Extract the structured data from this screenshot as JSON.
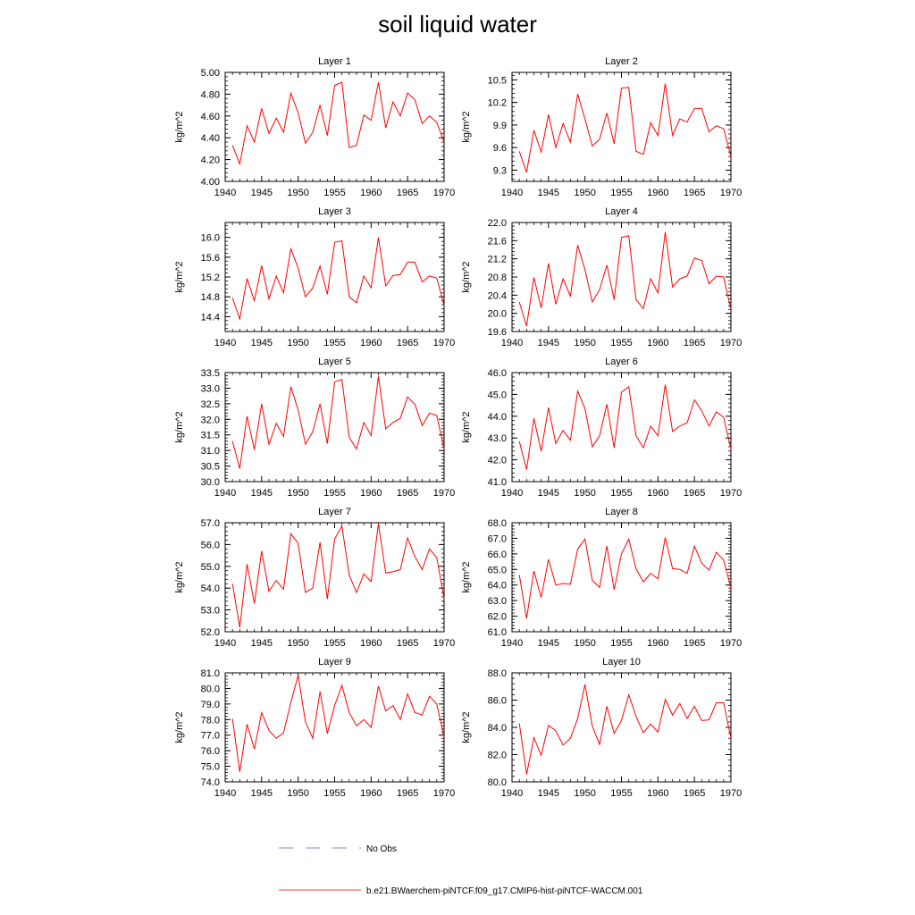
{
  "title": "soil liquid water",
  "legend": [
    {
      "label": "No Obs",
      "color": "#5b5bd6",
      "dash": "dashed"
    },
    {
      "label": "b.e21.BWaerchem-piNTCF.f09_g17.CMIP6-hist-piNTCF-WACCM.001",
      "color": "#ff0000",
      "dash": "solid"
    }
  ],
  "chart_data": [
    {
      "type": "line",
      "title": "Layer 1",
      "ylabel": "kg/m^2",
      "x": [
        1941,
        1942,
        1943,
        1944,
        1945,
        1946,
        1947,
        1948,
        1949,
        1950,
        1951,
        1952,
        1953,
        1954,
        1955,
        1956,
        1957,
        1958,
        1959,
        1960,
        1961,
        1962,
        1963,
        1964,
        1965,
        1966,
        1967,
        1968,
        1969,
        1970
      ],
      "xlim": [
        1940,
        1970
      ],
      "xticks": [
        "1940",
        "1945",
        "1950",
        "1955",
        "1960",
        "1965",
        "1970"
      ],
      "ylim": [
        4.0,
        5.0
      ],
      "yticks": [
        "4.00",
        "4.20",
        "4.40",
        "4.60",
        "4.80",
        "5.00"
      ],
      "series": [
        {
          "values": [
            4.33,
            4.16,
            4.51,
            4.36,
            4.67,
            4.44,
            4.58,
            4.45,
            4.81,
            4.63,
            4.35,
            4.45,
            4.7,
            4.42,
            4.88,
            4.91,
            4.31,
            4.33,
            4.61,
            4.56,
            4.91,
            4.49,
            4.73,
            4.6,
            4.81,
            4.75,
            4.53,
            4.6,
            4.54,
            4.36
          ],
          "color": "#ff0000"
        }
      ]
    },
    {
      "type": "line",
      "title": "Layer 2",
      "ylabel": "kg/m^2",
      "x": [
        1941,
        1942,
        1943,
        1944,
        1945,
        1946,
        1947,
        1948,
        1949,
        1950,
        1951,
        1952,
        1953,
        1954,
        1955,
        1956,
        1957,
        1958,
        1959,
        1960,
        1961,
        1962,
        1963,
        1964,
        1965,
        1966,
        1967,
        1968,
        1969,
        1970
      ],
      "xlim": [
        1940,
        1970
      ],
      "xticks": [
        "1940",
        "1945",
        "1950",
        "1955",
        "1960",
        "1965",
        "1970"
      ],
      "ylim": [
        9.15,
        10.6
      ],
      "yticks": [
        "9.3",
        "9.6",
        "9.9",
        "10.2",
        "10.5"
      ],
      "series": [
        {
          "values": [
            9.55,
            9.27,
            9.83,
            9.54,
            10.04,
            9.6,
            9.92,
            9.67,
            10.31,
            9.98,
            9.62,
            9.71,
            10.06,
            9.65,
            10.39,
            10.4,
            9.55,
            9.51,
            9.93,
            9.76,
            10.45,
            9.76,
            9.98,
            9.94,
            10.12,
            10.12,
            9.81,
            9.89,
            9.85,
            9.48
          ],
          "color": "#ff0000"
        }
      ]
    },
    {
      "type": "line",
      "title": "Layer 3",
      "ylabel": "kg/m^2",
      "x": [
        1941,
        1942,
        1943,
        1944,
        1945,
        1946,
        1947,
        1948,
        1949,
        1950,
        1951,
        1952,
        1953,
        1954,
        1955,
        1956,
        1957,
        1958,
        1959,
        1960,
        1961,
        1962,
        1963,
        1964,
        1965,
        1966,
        1967,
        1968,
        1969,
        1970
      ],
      "xlim": [
        1940,
        1970
      ],
      "xticks": [
        "1940",
        "1945",
        "1950",
        "1955",
        "1960",
        "1965",
        "1970"
      ],
      "ylim": [
        14.1,
        16.3
      ],
      "yticks": [
        "14.4",
        "14.8",
        "15.2",
        "15.6",
        "16.0"
      ],
      "series": [
        {
          "values": [
            14.78,
            14.35,
            15.17,
            14.72,
            15.43,
            14.76,
            15.22,
            14.88,
            15.77,
            15.38,
            14.8,
            14.98,
            15.42,
            14.85,
            15.9,
            15.93,
            14.8,
            14.68,
            15.22,
            14.98,
            16.0,
            15.02,
            15.23,
            15.25,
            15.5,
            15.5,
            15.1,
            15.22,
            15.18,
            14.62
          ],
          "color": "#ff0000"
        }
      ]
    },
    {
      "type": "line",
      "title": "Layer 4",
      "ylabel": "kg/m^2",
      "x": [
        1941,
        1942,
        1943,
        1944,
        1945,
        1946,
        1947,
        1948,
        1949,
        1950,
        1951,
        1952,
        1953,
        1954,
        1955,
        1956,
        1957,
        1958,
        1959,
        1960,
        1961,
        1962,
        1963,
        1964,
        1965,
        1966,
        1967,
        1968,
        1969,
        1970
      ],
      "xlim": [
        1940,
        1970
      ],
      "xticks": [
        "1940",
        "1945",
        "1950",
        "1955",
        "1960",
        "1965",
        "1970"
      ],
      "ylim": [
        19.6,
        22.0
      ],
      "yticks": [
        "19.6",
        "20.0",
        "20.4",
        "20.8",
        "21.2",
        "21.6",
        "22.0"
      ],
      "series": [
        {
          "values": [
            20.25,
            19.72,
            20.79,
            20.12,
            21.1,
            20.2,
            20.76,
            20.38,
            21.5,
            20.96,
            20.25,
            20.52,
            21.06,
            20.3,
            21.67,
            21.71,
            20.3,
            20.1,
            20.76,
            20.45,
            21.79,
            20.58,
            20.76,
            20.82,
            21.22,
            21.16,
            20.65,
            20.82,
            20.8,
            20.08
          ],
          "color": "#ff0000"
        }
      ]
    },
    {
      "type": "line",
      "title": "Layer 5",
      "ylabel": "kg/m^2",
      "x": [
        1941,
        1942,
        1943,
        1944,
        1945,
        1946,
        1947,
        1948,
        1949,
        1950,
        1951,
        1952,
        1953,
        1954,
        1955,
        1956,
        1957,
        1958,
        1959,
        1960,
        1961,
        1962,
        1963,
        1964,
        1965,
        1966,
        1967,
        1968,
        1969,
        1970
      ],
      "xlim": [
        1940,
        1970
      ],
      "xticks": [
        "1940",
        "1945",
        "1950",
        "1955",
        "1960",
        "1965",
        "1970"
      ],
      "ylim": [
        30.0,
        33.5
      ],
      "yticks": [
        "30.0",
        "30.5",
        "31.0",
        "31.5",
        "32.0",
        "32.5",
        "33.0",
        "33.5"
      ],
      "series": [
        {
          "values": [
            31.3,
            30.42,
            32.1,
            31.02,
            32.5,
            31.2,
            31.87,
            31.45,
            33.05,
            32.3,
            31.2,
            31.6,
            32.5,
            31.22,
            33.2,
            33.28,
            31.42,
            31.05,
            31.9,
            31.48,
            33.38,
            31.7,
            31.9,
            32.03,
            32.72,
            32.48,
            31.8,
            32.2,
            32.12,
            31.05
          ],
          "color": "#ff0000"
        }
      ]
    },
    {
      "type": "line",
      "title": "Layer 6",
      "ylabel": "kg/m^2",
      "x": [
        1941,
        1942,
        1943,
        1944,
        1945,
        1946,
        1947,
        1948,
        1949,
        1950,
        1951,
        1952,
        1953,
        1954,
        1955,
        1956,
        1957,
        1958,
        1959,
        1960,
        1961,
        1962,
        1963,
        1964,
        1965,
        1966,
        1967,
        1968,
        1969,
        1970
      ],
      "xlim": [
        1940,
        1970
      ],
      "xticks": [
        "1940",
        "1945",
        "1950",
        "1955",
        "1960",
        "1965",
        "1970"
      ],
      "ylim": [
        41.0,
        46.0
      ],
      "yticks": [
        "41.0",
        "42.0",
        "43.0",
        "44.0",
        "45.0",
        "46.0"
      ],
      "series": [
        {
          "values": [
            42.85,
            41.55,
            43.9,
            42.4,
            44.4,
            42.75,
            43.35,
            42.9,
            45.15,
            44.35,
            42.6,
            43.1,
            44.55,
            42.55,
            45.1,
            45.35,
            43.1,
            42.55,
            43.55,
            43.1,
            45.45,
            43.3,
            43.55,
            43.7,
            44.75,
            44.25,
            43.55,
            44.2,
            43.95,
            42.5
          ],
          "color": "#ff0000"
        }
      ]
    },
    {
      "type": "line",
      "title": "Layer 7",
      "ylabel": "kg/m^2",
      "x": [
        1941,
        1942,
        1943,
        1944,
        1945,
        1946,
        1947,
        1948,
        1949,
        1950,
        1951,
        1952,
        1953,
        1954,
        1955,
        1956,
        1957,
        1958,
        1959,
        1960,
        1961,
        1962,
        1963,
        1964,
        1965,
        1966,
        1967,
        1968,
        1969,
        1970
      ],
      "xlim": [
        1940,
        1970
      ],
      "xticks": [
        "1940",
        "1945",
        "1950",
        "1955",
        "1960",
        "1965",
        "1970"
      ],
      "ylim": [
        52.0,
        57.0
      ],
      "yticks": [
        "52.0",
        "53.0",
        "54.0",
        "55.0",
        "56.0",
        "57.0"
      ],
      "series": [
        {
          "values": [
            54.2,
            52.2,
            55.1,
            53.3,
            55.7,
            53.85,
            54.35,
            53.95,
            56.5,
            56.05,
            53.8,
            54.0,
            56.1,
            53.5,
            56.25,
            56.85,
            54.6,
            53.8,
            54.65,
            54.3,
            56.95,
            54.7,
            54.75,
            54.85,
            56.3,
            55.45,
            54.85,
            55.8,
            55.4,
            53.5
          ],
          "color": "#ff0000"
        }
      ]
    },
    {
      "type": "line",
      "title": "Layer 8",
      "ylabel": "kg/m^2",
      "x": [
        1941,
        1942,
        1943,
        1944,
        1945,
        1946,
        1947,
        1948,
        1949,
        1950,
        1951,
        1952,
        1953,
        1954,
        1955,
        1956,
        1957,
        1958,
        1959,
        1960,
        1961,
        1962,
        1963,
        1964,
        1965,
        1966,
        1967,
        1968,
        1969,
        1970
      ],
      "xlim": [
        1940,
        1970
      ],
      "xticks": [
        "1940",
        "1945",
        "1950",
        "1955",
        "1960",
        "1965",
        "1970"
      ],
      "ylim": [
        61.0,
        68.0
      ],
      "yticks": [
        "61.0",
        "62.0",
        "63.0",
        "64.0",
        "65.0",
        "66.0",
        "67.0",
        "68.0"
      ],
      "series": [
        {
          "values": [
            64.65,
            61.85,
            64.9,
            63.2,
            65.65,
            64.0,
            64.1,
            64.05,
            66.3,
            66.95,
            64.3,
            63.85,
            66.5,
            63.7,
            66.0,
            66.95,
            65.05,
            64.2,
            64.75,
            64.4,
            67.05,
            65.05,
            65.0,
            64.75,
            66.5,
            65.4,
            64.95,
            66.1,
            65.6,
            63.8
          ],
          "color": "#ff0000"
        }
      ]
    },
    {
      "type": "line",
      "title": "Layer 9",
      "ylabel": "kg/m^2",
      "x": [
        1941,
        1942,
        1943,
        1944,
        1945,
        1946,
        1947,
        1948,
        1949,
        1950,
        1951,
        1952,
        1953,
        1954,
        1955,
        1956,
        1957,
        1958,
        1959,
        1960,
        1961,
        1962,
        1963,
        1964,
        1965,
        1966,
        1967,
        1968,
        1969,
        1970
      ],
      "xlim": [
        1940,
        1970
      ],
      "xticks": [
        "1940",
        "1945",
        "1950",
        "1955",
        "1960",
        "1965",
        "1970"
      ],
      "ylim": [
        74.0,
        81.0
      ],
      "yticks": [
        "74.0",
        "75.0",
        "76.0",
        "77.0",
        "78.0",
        "79.0",
        "80.0",
        "81.0"
      ],
      "series": [
        {
          "values": [
            78.05,
            74.65,
            77.7,
            76.1,
            78.45,
            77.3,
            76.8,
            77.15,
            79.1,
            80.85,
            77.85,
            76.8,
            79.8,
            77.1,
            78.9,
            80.2,
            78.45,
            77.6,
            78.0,
            77.5,
            80.15,
            78.55,
            78.9,
            78.0,
            79.65,
            78.45,
            78.3,
            79.5,
            79.0,
            76.85
          ],
          "color": "#ff0000"
        }
      ]
    },
    {
      "type": "line",
      "title": "Layer 10",
      "ylabel": "kg/m^2",
      "x": [
        1941,
        1942,
        1943,
        1944,
        1945,
        1946,
        1947,
        1948,
        1949,
        1950,
        1951,
        1952,
        1953,
        1954,
        1955,
        1956,
        1957,
        1958,
        1959,
        1960,
        1961,
        1962,
        1963,
        1964,
        1965,
        1966,
        1967,
        1968,
        1969,
        1970
      ],
      "xlim": [
        1940,
        1970
      ],
      "xticks": [
        "1940",
        "1945",
        "1950",
        "1955",
        "1960",
        "1965",
        "1970"
      ],
      "ylim": [
        80.0,
        88.0
      ],
      "yticks": [
        "80.0",
        "82.0",
        "84.0",
        "86.0",
        "88.0"
      ],
      "series": [
        {
          "values": [
            84.3,
            80.55,
            83.25,
            81.95,
            84.15,
            83.75,
            82.7,
            83.2,
            84.65,
            87.15,
            84.1,
            82.75,
            85.55,
            83.55,
            84.5,
            86.4,
            84.8,
            83.6,
            84.25,
            83.65,
            86.05,
            84.9,
            85.75,
            84.65,
            85.55,
            84.5,
            84.55,
            85.8,
            85.8,
            83.2
          ],
          "color": "#ff0000"
        }
      ]
    }
  ]
}
